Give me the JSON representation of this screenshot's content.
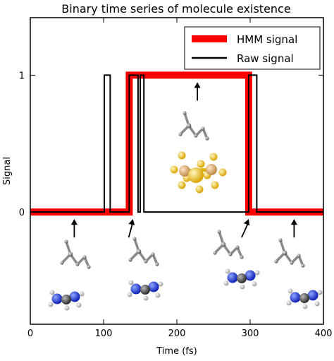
{
  "chart_data": {
    "type": "line",
    "title": "Binary time series of molecule existence",
    "xlabel": "Time (fs)",
    "ylabel": "Signal",
    "xlim": [
      0,
      400
    ],
    "ylim": [
      -0.82,
      1.42
    ],
    "xticks": [
      0,
      100,
      200,
      300,
      400
    ],
    "yticks": [
      0,
      1
    ],
    "legend": {
      "placement": "top-right",
      "entries": [
        "HMM signal",
        "Raw signal"
      ]
    },
    "series": [
      {
        "name": "HMM signal",
        "color": "#ff0000",
        "x": [
          0,
          135,
          135,
          298,
          298,
          400
        ],
        "y": [
          0,
          0,
          1,
          1,
          0,
          0
        ]
      },
      {
        "name": "Raw signal",
        "color": "#000000",
        "x": [
          0,
          101,
          101,
          109,
          109,
          135,
          135,
          147,
          147,
          150,
          150,
          155,
          155,
          298,
          298,
          309,
          309,
          315,
          315,
          400
        ],
        "y": [
          0,
          0,
          1,
          1,
          0,
          0,
          1,
          1,
          0,
          0,
          1,
          1,
          0,
          0,
          1,
          1,
          0,
          0,
          0,
          0
        ]
      }
    ],
    "annotations": [
      {
        "x": 60,
        "target_y": 0,
        "direction": "up",
        "depicts": "molecule pair: grey chain fragment and blue/white molecule"
      },
      {
        "x": 140,
        "target_y": 0,
        "direction": "up",
        "depicts": "molecule pair: grey chain fragment and blue/white molecule"
      },
      {
        "x": 228,
        "target_y": 1,
        "direction": "down",
        "depicts": "grey chain fragment and yellow combined molecule"
      },
      {
        "x": 298,
        "target_y": 0,
        "direction": "up",
        "depicts": "molecule pair: grey chain fragment and blue/white molecule"
      },
      {
        "x": 360,
        "target_y": 0,
        "direction": "up",
        "depicts": "molecule pair: grey chain fragment and blue/white molecule"
      }
    ]
  }
}
